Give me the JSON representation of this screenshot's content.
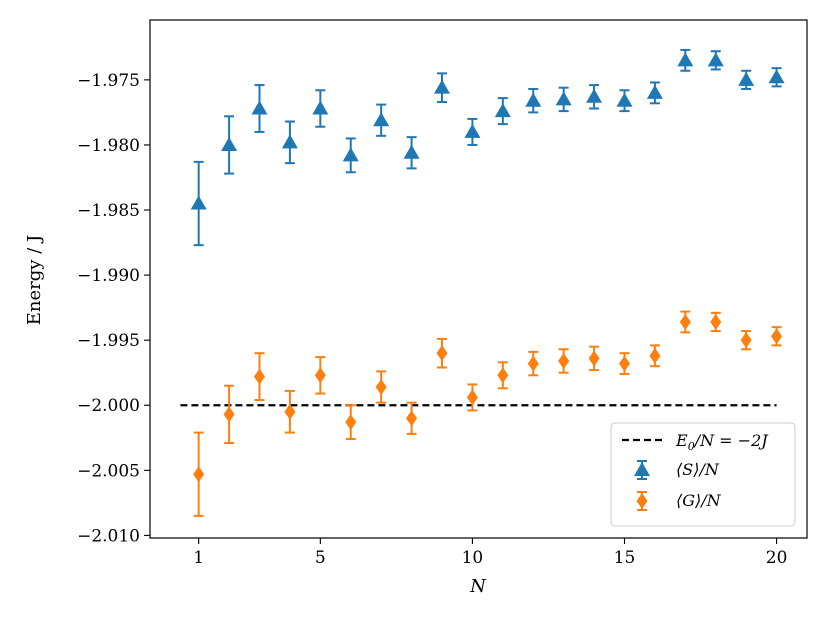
{
  "chart_data": {
    "type": "scatter",
    "title": "",
    "xlabel": "N",
    "ylabel": "Energy / J",
    "xlim": [
      -0.6,
      21.0
    ],
    "ylim": [
      -2.0102,
      -1.9704
    ],
    "x_ticks": [
      1,
      5,
      10,
      15,
      20
    ],
    "x_tick_labels": [
      "1",
      "5",
      "10",
      "15",
      "20"
    ],
    "y_ticks": [
      -2.01,
      -2.005,
      -2.0,
      -1.995,
      -1.99,
      -1.985,
      -1.98,
      -1.975
    ],
    "y_tick_labels": [
      "−2.010",
      "−2.005",
      "−2.000",
      "−1.995",
      "−1.990",
      "−1.985",
      "−1.980",
      "−1.975"
    ],
    "grid": false,
    "legend_position": "lower-right",
    "reference_line": {
      "y": -2.0,
      "x_range": [
        0.4,
        20.0
      ],
      "label": "E₀/N = −2J",
      "color": "#000000"
    },
    "series": [
      {
        "name": "⟨S⟩/N",
        "marker": "triangle",
        "color": "#1f77b4",
        "x": [
          1,
          2,
          3,
          4,
          5,
          6,
          7,
          8,
          9,
          10,
          11,
          12,
          13,
          14,
          15,
          16,
          17,
          18,
          19,
          20
        ],
        "y": [
          -1.9845,
          -1.98,
          -1.9772,
          -1.9798,
          -1.9772,
          -1.9808,
          -1.9781,
          -1.9806,
          -1.9756,
          -1.979,
          -1.9774,
          -1.9766,
          -1.9765,
          -1.9763,
          -1.9766,
          -1.976,
          -1.9735,
          -1.9735,
          -1.975,
          -1.9748
        ],
        "err": [
          0.0032,
          0.0022,
          0.0018,
          0.0016,
          0.0014,
          0.0013,
          0.0012,
          0.0012,
          0.0011,
          0.001,
          0.001,
          0.0009,
          0.0009,
          0.0009,
          0.0008,
          0.0008,
          0.0008,
          0.0007,
          0.0007,
          0.0007
        ]
      },
      {
        "name": "⟨G⟩/N",
        "marker": "diamond",
        "color": "#ff7f0e",
        "x": [
          1,
          2,
          3,
          4,
          5,
          6,
          7,
          8,
          9,
          10,
          11,
          12,
          13,
          14,
          15,
          16,
          17,
          18,
          19,
          20
        ],
        "y": [
          -2.0053,
          -2.0007,
          -1.9978,
          -2.0005,
          -1.9977,
          -2.0013,
          -1.9986,
          -2.001,
          -1.996,
          -1.9994,
          -1.9977,
          -1.9968,
          -1.9966,
          -1.9964,
          -1.9968,
          -1.9962,
          -1.9936,
          -1.9936,
          -1.995,
          -1.9947
        ],
        "err": [
          0.0032,
          0.0022,
          0.0018,
          0.0016,
          0.0014,
          0.0013,
          0.0012,
          0.0012,
          0.0011,
          0.001,
          0.001,
          0.0009,
          0.0009,
          0.0009,
          0.0008,
          0.0008,
          0.0008,
          0.0007,
          0.0007,
          0.0007
        ]
      }
    ],
    "legend": [
      {
        "key": "reference",
        "label_main": "E",
        "label_sub": "0",
        "label_rest": "/N = −2J"
      },
      {
        "key": "S",
        "label": "⟨S⟩/N"
      },
      {
        "key": "G",
        "label": "⟨G⟩/N"
      }
    ]
  }
}
